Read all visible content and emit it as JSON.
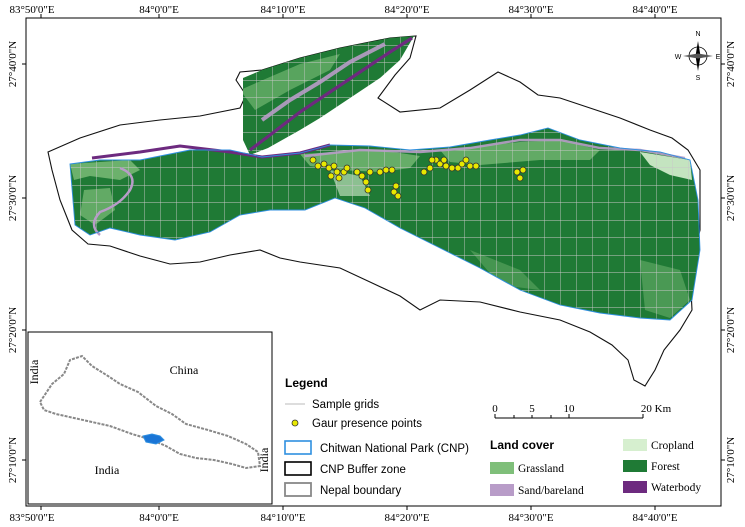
{
  "coords": {
    "top": [
      "83°50'0\"E",
      "84°0'0\"E",
      "84°10'0\"E",
      "84°20'0\"E",
      "84°30'0\"E",
      "84°40'0\"E"
    ],
    "bottom": [
      "83°50'0\"E",
      "84°0'0\"E",
      "84°10'0\"E",
      "84°20'0\"E",
      "84°30'0\"E",
      "84°40'0\"E"
    ],
    "left": [
      "27°40'0\"N",
      "27°30'0\"N",
      "27°20'0\"N",
      "27°10'0\"N"
    ],
    "right": [
      "27°40'0\"N",
      "27°30'0\"N",
      "27°20'0\"N",
      "27°10'0\"N"
    ]
  },
  "compass": {
    "n": "N",
    "s": "S",
    "e": "E",
    "w": "W"
  },
  "inset": {
    "china": "China",
    "india_bottom": "India",
    "india_left": "India",
    "india_right": "India"
  },
  "legend": {
    "title": "Legend",
    "sample_grids": "Sample grids",
    "gaur": "Gaur presence points",
    "cnp": "Chitwan National Park (CNP)",
    "buffer": "CNP Buffer zone",
    "nepal": "Nepal boundary"
  },
  "scalebar": {
    "ticks": [
      "0",
      "5",
      "10",
      "20 Km"
    ]
  },
  "landcover": {
    "title": "Land cover",
    "grassland": "Grassland",
    "sand": "Sand/bareland",
    "cropland": "Cropland",
    "forest": "Forest",
    "waterbody": "Waterbody"
  },
  "colors": {
    "forest": "#1f7a35",
    "grassland": "#7fbf7a",
    "cropland": "#d6efcf",
    "sand": "#b89cc8",
    "waterbody": "#6d2a7f",
    "cnp_outline": "#2f8fe0",
    "gaur_point": "#e8e800"
  }
}
